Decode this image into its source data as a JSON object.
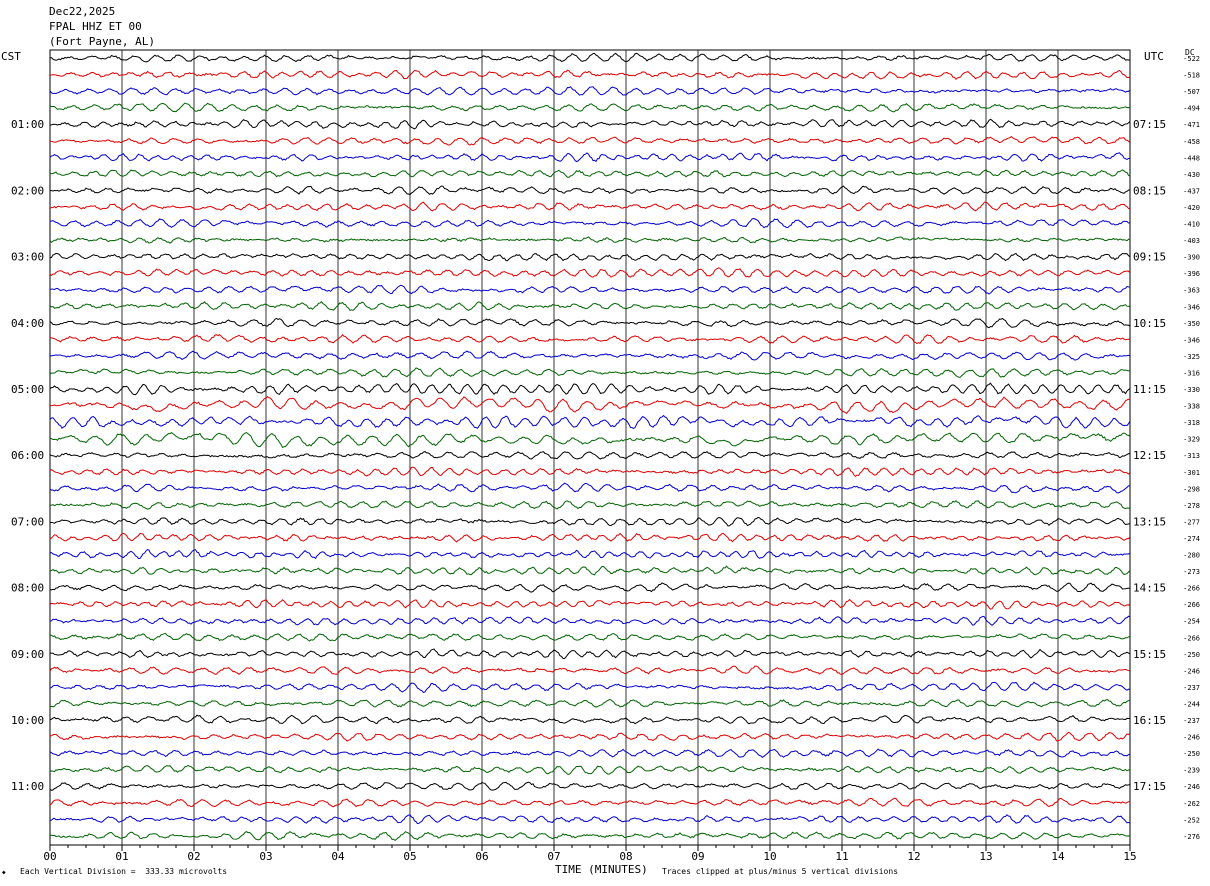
{
  "header": {
    "date": "Dec22,2025",
    "station": "FPAL HHZ ET 00",
    "location": "(Fort Payne, AL)"
  },
  "left_zone_label": "CST",
  "right_zone_label": "UTC",
  "dc_label": "DC",
  "footer": {
    "scale_note": "Each Vertical Division =  333.33 microvolts",
    "clip_note": "Traces clipped at plus/minus 5 vertical divisions"
  },
  "chart_data": {
    "type": "line",
    "xlabel": "TIME (MINUTES)",
    "xlim": [
      0,
      15
    ],
    "x_ticks": [
      "00",
      "01",
      "02",
      "03",
      "04",
      "05",
      "06",
      "07",
      "08",
      "09",
      "10",
      "11",
      "12",
      "13",
      "14",
      "15"
    ],
    "rows": 48,
    "series_colors": [
      "#000000",
      "#e00000",
      "#0000d0",
      "#006400"
    ],
    "left_time_labels": [
      "01:00",
      "02:00",
      "03:00",
      "04:00",
      "05:00",
      "06:00",
      "07:00",
      "08:00",
      "09:00",
      "10:00",
      "11:00"
    ],
    "right_time_labels": [
      "07:15",
      "08:15",
      "09:15",
      "10:15",
      "11:15",
      "12:15",
      "13:15",
      "14:15",
      "15:15",
      "16:15",
      "17:15"
    ],
    "dc_offsets": [
      "-522",
      "-518",
      "-507",
      "-494",
      "-471",
      "-458",
      "-448",
      "-430",
      "-437",
      "-420",
      "-410",
      "-403",
      "-390",
      "-396",
      "-363",
      "-346",
      "-350",
      "-346",
      "-325",
      "-316",
      "-330",
      "-338",
      "-318",
      "-329",
      "-313",
      "-301",
      "-298",
      "-278",
      "-277",
      "-274",
      "-280",
      "-273",
      "-266",
      "-266",
      "-254",
      "-266",
      "-250",
      "-246",
      "-237",
      "-244",
      "-237",
      "-246",
      "-250",
      "-239",
      "-246",
      "-262",
      "-252",
      "-276"
    ]
  }
}
